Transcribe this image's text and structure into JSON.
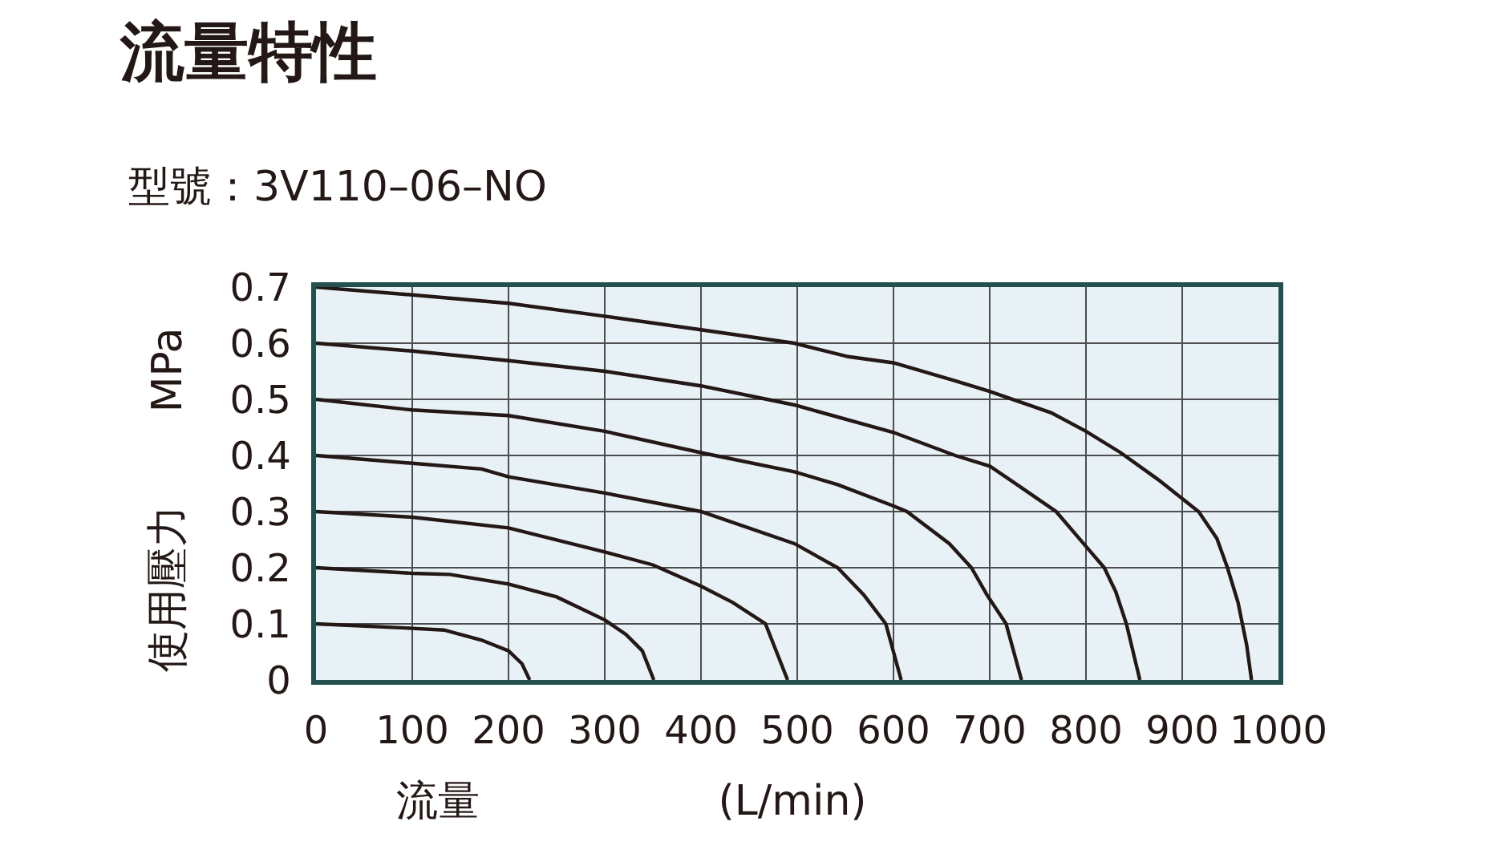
{
  "chart_data": {
    "type": "line",
    "title": "流量特性",
    "subtitle": "型號：3V110–06–NO",
    "xlabel": "流量 (L/min)",
    "ylabel": "使用壓力 MPa",
    "xlim": [
      0,
      1000
    ],
    "ylim": [
      0,
      0.7
    ],
    "xticks": [
      0,
      100,
      200,
      300,
      400,
      500,
      600,
      700,
      800,
      900,
      1000
    ],
    "yticks": [
      0,
      0.1,
      0.2,
      0.3,
      0.4,
      0.5,
      0.6,
      0.7
    ],
    "grid": true,
    "line_style": "solid",
    "series": [
      {
        "color": "#231815",
        "x": [
          0,
          100,
          133,
          172,
          200,
          214,
          222
        ],
        "values": [
          0.1,
          0.092,
          0.089,
          0.071,
          0.052,
          0.029,
          0
        ]
      },
      {
        "color": "#231815",
        "x": [
          0,
          100,
          139,
          200,
          250,
          300,
          322,
          339,
          351
        ],
        "values": [
          0.2,
          0.19,
          0.188,
          0.171,
          0.148,
          0.107,
          0.081,
          0.052,
          0
        ]
      },
      {
        "color": "#231815",
        "x": [
          0,
          100,
          200,
          300,
          350,
          400,
          433,
          467,
          490
        ],
        "values": [
          0.3,
          0.29,
          0.271,
          0.228,
          0.205,
          0.167,
          0.138,
          0.1,
          0
        ]
      },
      {
        "color": "#231815",
        "x": [
          0,
          100,
          172,
          200,
          300,
          400,
          497,
          542,
          569,
          592,
          608
        ],
        "values": [
          0.4,
          0.386,
          0.376,
          0.362,
          0.333,
          0.3,
          0.243,
          0.2,
          0.152,
          0.1,
          0
        ]
      },
      {
        "color": "#231815",
        "x": [
          0,
          100,
          200,
          300,
          400,
          497,
          542,
          600,
          614,
          658,
          681,
          697,
          717,
          733
        ],
        "values": [
          0.5,
          0.481,
          0.471,
          0.443,
          0.405,
          0.371,
          0.348,
          0.31,
          0.3,
          0.243,
          0.2,
          0.152,
          0.1,
          0
        ]
      },
      {
        "color": "#231815",
        "x": [
          0,
          100,
          200,
          300,
          400,
          497,
          600,
          664,
          700,
          725,
          769,
          800,
          819,
          831,
          842,
          856
        ],
        "values": [
          0.6,
          0.586,
          0.569,
          0.55,
          0.524,
          0.49,
          0.441,
          0.4,
          0.381,
          0.352,
          0.3,
          0.238,
          0.2,
          0.157,
          0.1,
          0
        ]
      },
      {
        "color": "#231815",
        "x": [
          0,
          100,
          200,
          300,
          400,
          497,
          553,
          600,
          664,
          700,
          764,
          800,
          836,
          875,
          917,
          936,
          947,
          958,
          967,
          972
        ],
        "values": [
          0.7,
          0.686,
          0.671,
          0.648,
          0.624,
          0.6,
          0.576,
          0.565,
          0.533,
          0.514,
          0.476,
          0.443,
          0.405,
          0.357,
          0.3,
          0.252,
          0.2,
          0.138,
          0.062,
          0
        ]
      }
    ]
  }
}
